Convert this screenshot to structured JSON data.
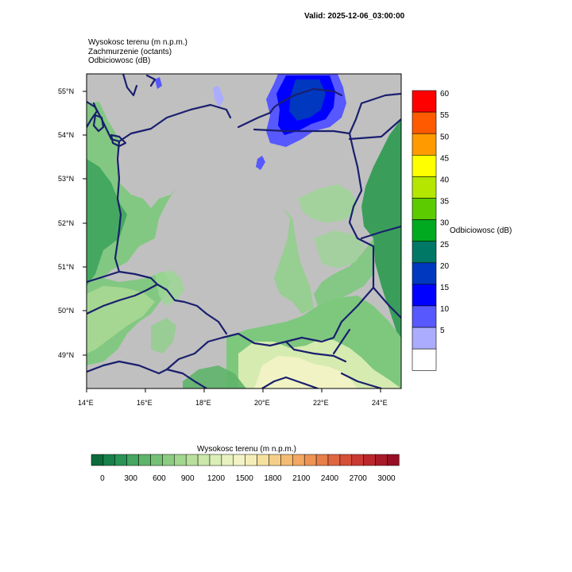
{
  "header": {
    "valid": "Valid: 2025-12-06_03:00:00",
    "lines": [
      "Wysokosc terenu   (m n.p.m.)",
      "Zachmurzenie   (octants)",
      "Odbiciowosc   (dB)"
    ]
  },
  "map": {
    "lat_ticks": [
      "55°N",
      "54°N",
      "53°N",
      "52°N",
      "51°N",
      "50°N",
      "49°N"
    ],
    "lon_ticks": [
      "14°E",
      "16°E",
      "18°E",
      "20°E",
      "22°E",
      "24°E"
    ],
    "colors": {
      "cloud": "#c0c0c0",
      "terrain_low": "#0e8a4a",
      "terrain_mid": "#7ec87e",
      "terrain_high": "#eef2c4",
      "border": "#1a1f6e"
    }
  },
  "reflectivity_bar": {
    "title": "Odbiciowosc  (dB)",
    "labels": [
      "60",
      "55",
      "50",
      "45",
      "40",
      "35",
      "30",
      "25",
      "20",
      "15",
      "10",
      "5"
    ],
    "colors": [
      "#ff0000",
      "#ff5a00",
      "#ff9a00",
      "#ffff00",
      "#b4e600",
      "#5ccc00",
      "#00aa20",
      "#007866",
      "#0038c0",
      "#0000ff",
      "#5858ff",
      "#acacff",
      "#ffffff"
    ]
  },
  "terrain_bar": {
    "title": "Wysokosc terenu   (m n.p.m.)",
    "labels": [
      "0",
      "300",
      "600",
      "900",
      "1200",
      "1500",
      "1800",
      "2100",
      "2400",
      "2700",
      "3000"
    ],
    "colors": [
      "#0c6b3a",
      "#17804a",
      "#2a9454",
      "#46a560",
      "#5eb46a",
      "#74c176",
      "#8ccc82",
      "#a3d68e",
      "#b8df9c",
      "#cbe7aa",
      "#dbeeb6",
      "#e8f2c0",
      "#f2f4c6",
      "#f6eeb8",
      "#f6e0a0",
      "#f5cf88",
      "#f4bc72",
      "#f2a862",
      "#ee9354",
      "#e87e48",
      "#e06640",
      "#d64f38",
      "#ca3a32",
      "#bb272c",
      "#a91a28",
      "#960f24"
    ]
  }
}
